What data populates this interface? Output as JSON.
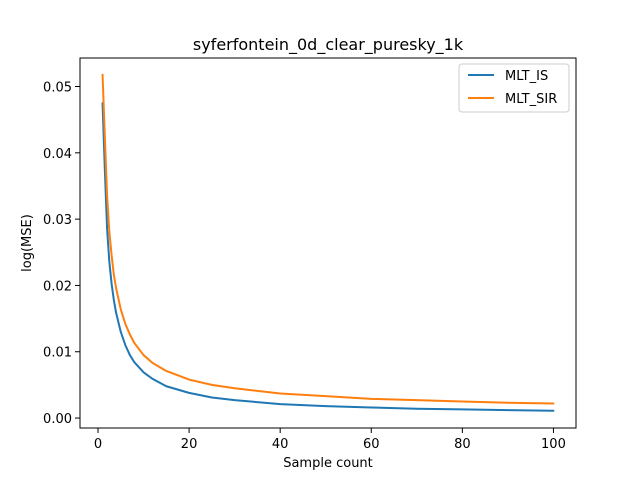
{
  "chart_data": {
    "type": "line",
    "title": "syferfontein_0d_clear_puresky_1k",
    "xlabel": "Sample count",
    "ylabel": "log(MSE)",
    "xlim": [
      -3.95,
      104.95
    ],
    "ylim": [
      -0.0015,
      0.0543
    ],
    "x_ticks": [
      0,
      20,
      40,
      60,
      80,
      100
    ],
    "x_tick_labels": [
      "0",
      "20",
      "40",
      "60",
      "80",
      "100"
    ],
    "y_ticks": [
      0.0,
      0.01,
      0.02,
      0.03,
      0.04,
      0.05
    ],
    "y_tick_labels": [
      "0.00",
      "0.01",
      "0.02",
      "0.03",
      "0.04",
      "0.05"
    ],
    "grid": false,
    "legend_position": "top-right",
    "series": [
      {
        "name": "MLT_IS",
        "color": "#1f77b4",
        "x": [
          1,
          1.5,
          2,
          2.5,
          3,
          3.5,
          4,
          5,
          6,
          7,
          8,
          10,
          12,
          15,
          20,
          25,
          30,
          40,
          50,
          60,
          70,
          80,
          90,
          100
        ],
        "y": [
          0.0475,
          0.0375,
          0.0285,
          0.0235,
          0.0202,
          0.0177,
          0.0158,
          0.013,
          0.011,
          0.0095,
          0.0084,
          0.0069,
          0.0059,
          0.0048,
          0.0038,
          0.0031,
          0.0027,
          0.0021,
          0.0018,
          0.0016,
          0.0014,
          0.0013,
          0.0012,
          0.0011
        ]
      },
      {
        "name": "MLT_SIR",
        "color": "#ff7f0e",
        "x": [
          1,
          1.5,
          2,
          2.5,
          3,
          3.5,
          4,
          5,
          6,
          7,
          8,
          10,
          12,
          15,
          20,
          25,
          30,
          40,
          50,
          60,
          70,
          80,
          90,
          100
        ],
        "y": [
          0.0518,
          0.0425,
          0.0335,
          0.028,
          0.0245,
          0.0215,
          0.0195,
          0.0164,
          0.0142,
          0.0126,
          0.0113,
          0.0095,
          0.0083,
          0.0071,
          0.0058,
          0.005,
          0.0045,
          0.0037,
          0.0033,
          0.0029,
          0.0027,
          0.0025,
          0.0023,
          0.0022
        ]
      }
    ]
  }
}
